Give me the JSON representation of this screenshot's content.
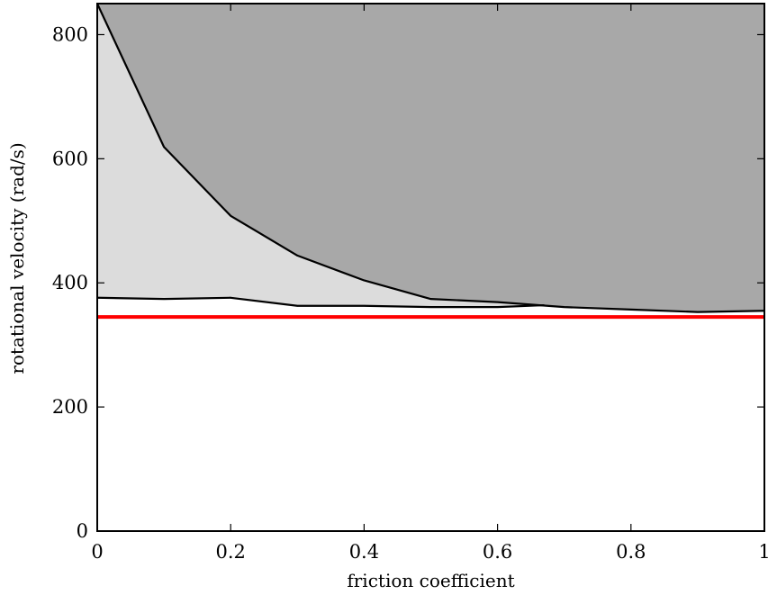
{
  "chart_data": {
    "type": "area",
    "title": "",
    "xlabel": "friction coefficient",
    "ylabel": "rotational velocity (rad/s)",
    "xlim": [
      0,
      1
    ],
    "ylim": [
      0,
      850
    ],
    "x_ticks": [
      0,
      0.2,
      0.4,
      0.6,
      0.8,
      1
    ],
    "x_tick_labels": [
      "0",
      "0.2",
      "0.4",
      "0.6",
      "0.8",
      "1"
    ],
    "y_ticks": [
      0,
      200,
      400,
      600,
      800
    ],
    "y_tick_labels": [
      "0",
      "200",
      "400",
      "600",
      "800"
    ],
    "grid": false,
    "legend": "none",
    "series": [
      {
        "x": [
          0,
          0.1,
          0.2,
          0.3,
          0.4,
          0.5,
          0.6,
          0.7,
          0.8,
          0.9,
          1.0
        ],
        "y": [
          850,
          619,
          508,
          444,
          404,
          374,
          369,
          361,
          357,
          353,
          355
        ],
        "fill": "#a8a8a8"
      },
      {
        "x": [
          0,
          0.1,
          0.2,
          0.3,
          0.4,
          0.5,
          0.6,
          0.67
        ],
        "y": [
          376,
          374,
          376,
          363,
          363,
          361,
          361,
          364
        ],
        "fill": "#dcdcdc"
      }
    ],
    "reference_line": {
      "y": 345,
      "color": "#ff0000"
    }
  }
}
